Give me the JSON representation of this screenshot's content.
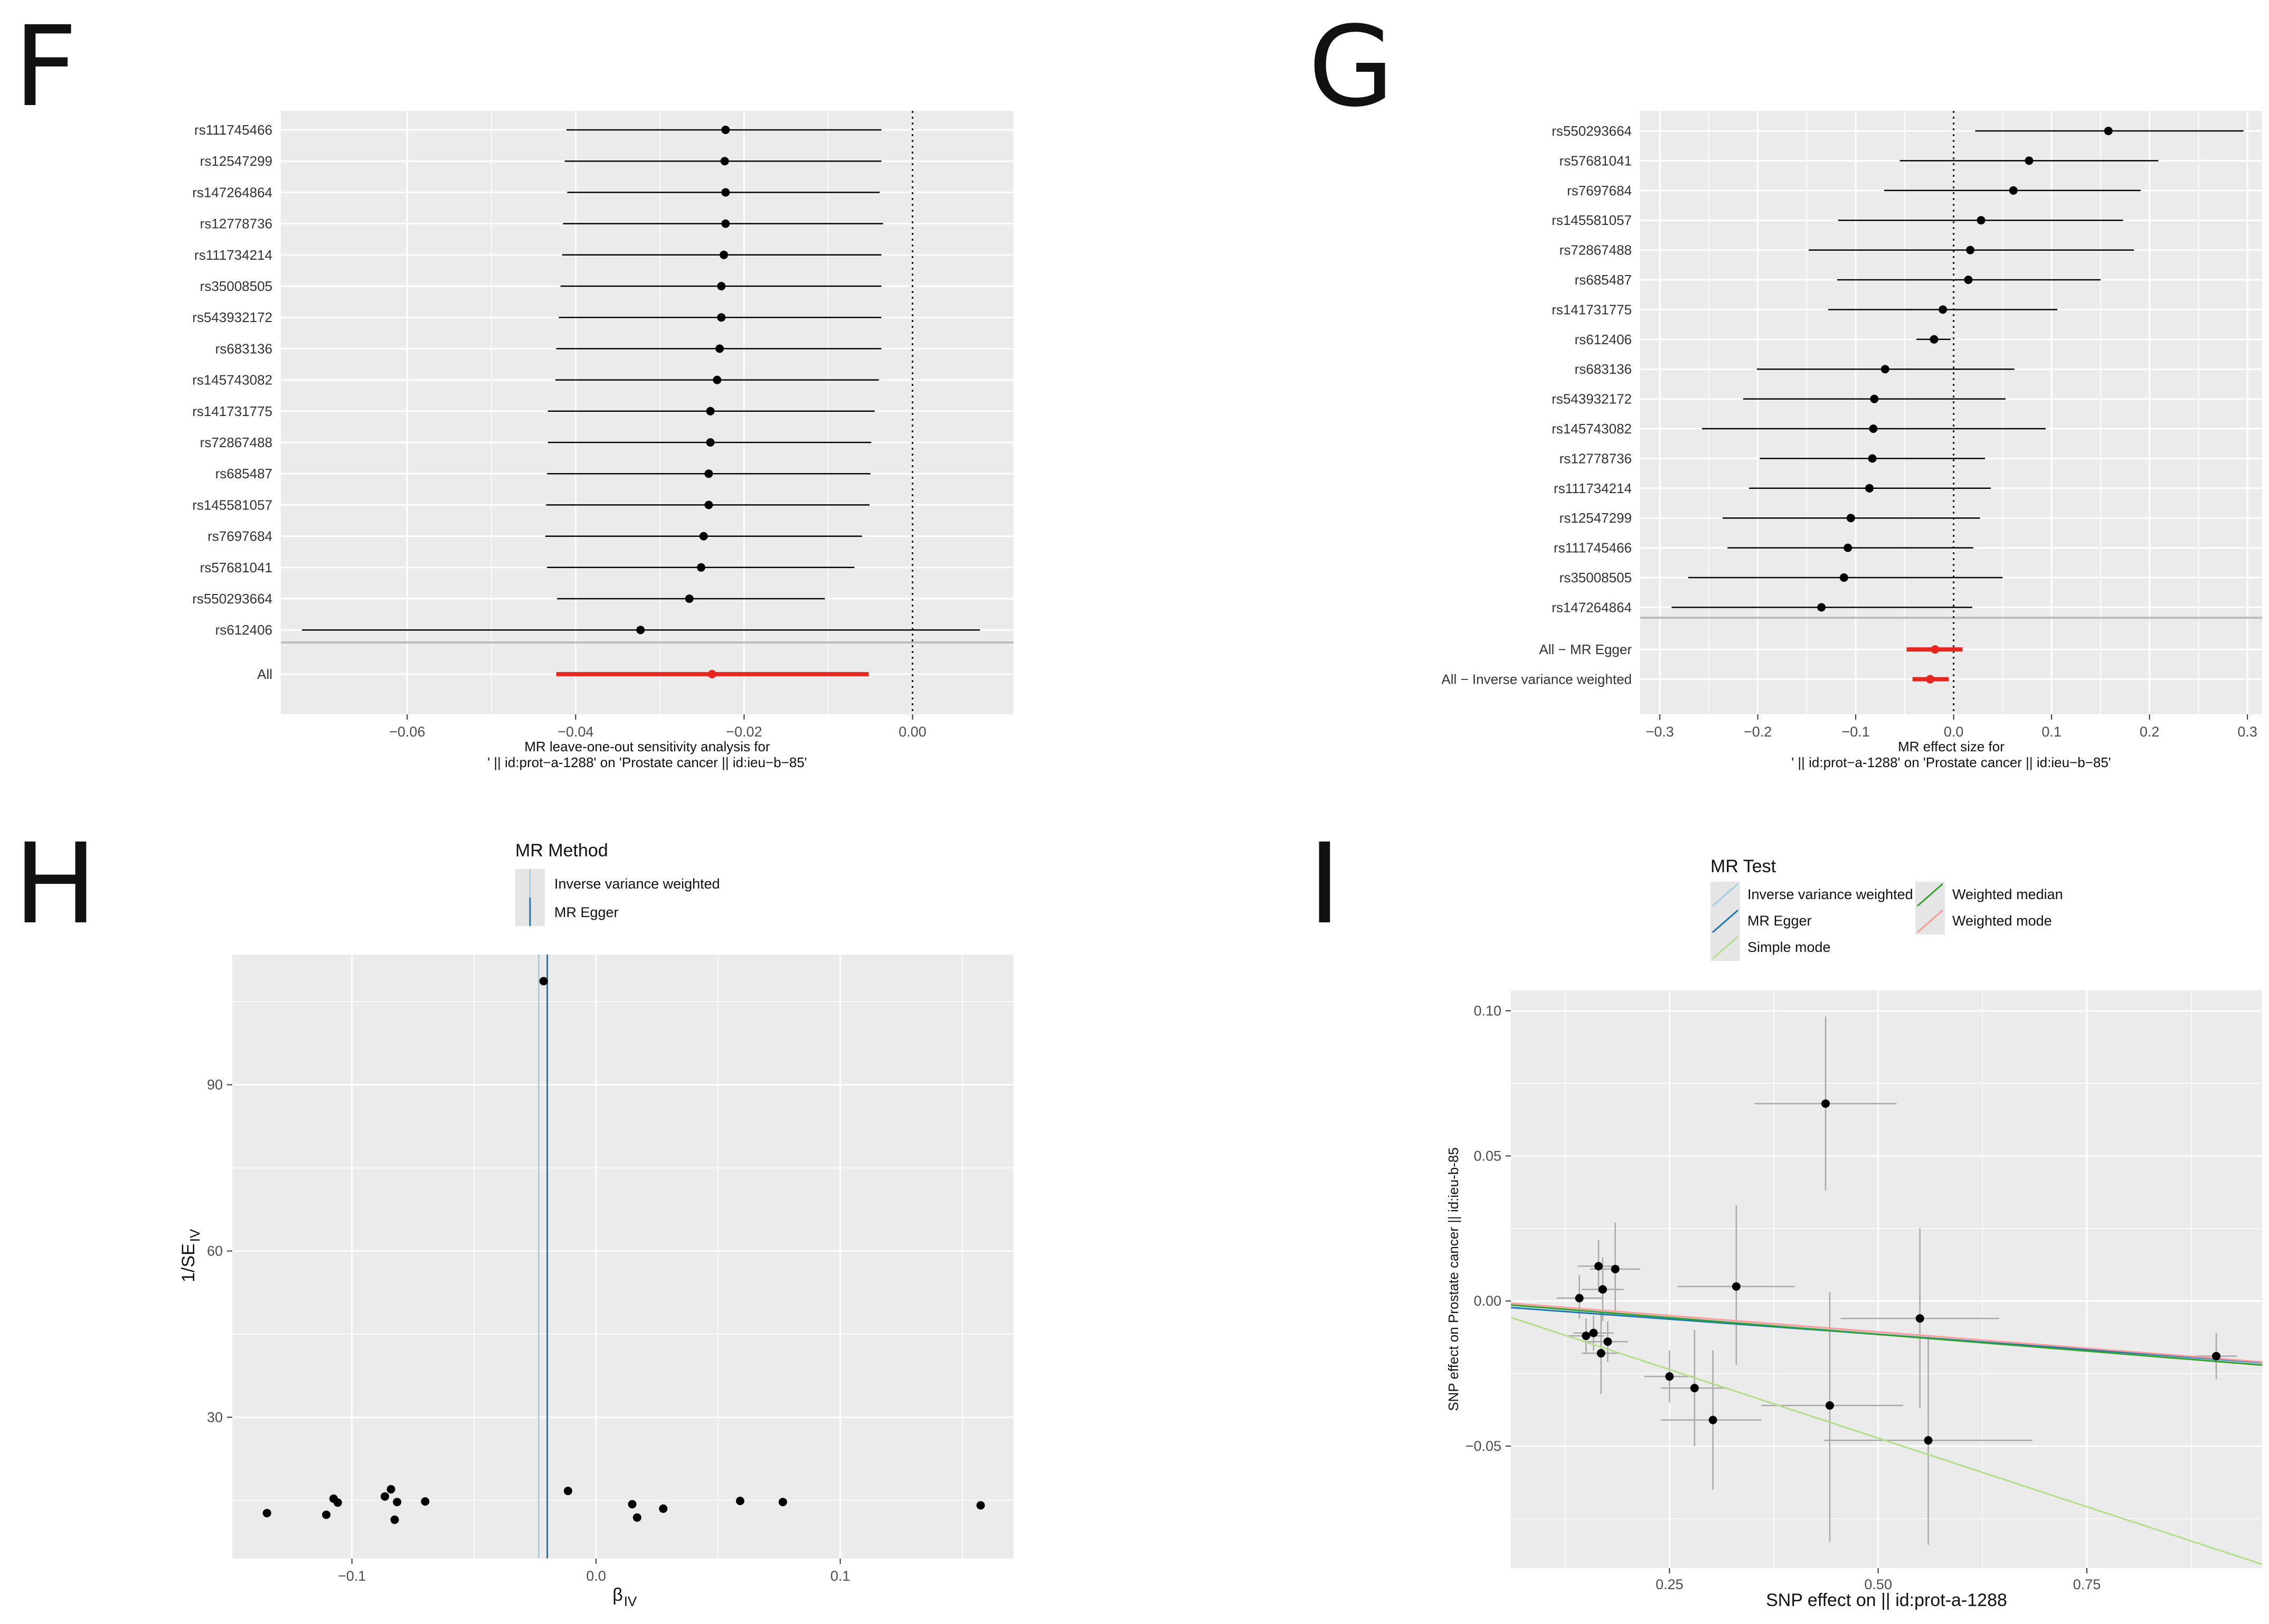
{
  "panels": {
    "F": "F",
    "G": "G",
    "H": "H",
    "I": "I"
  },
  "colors": {
    "panel_bg": "#ebebeb",
    "grid": "#ffffff",
    "point": "#000000",
    "summary": "#e6261f",
    "ivw": "#a6cee3",
    "egger": "#1f78b4",
    "simple_mode": "#b2df8a",
    "weighted_median": "#33a02c",
    "weighted_mode": "#fb9a99"
  },
  "chart_data": [
    {
      "id": "F",
      "type": "forest",
      "title": "MR leave-one-out sensitivity analysis for",
      "subtitle": "' || id:prot-a-1288' on 'Prostate cancer || id:ieu-b-85'",
      "xlim": [
        -0.075,
        0.012
      ],
      "xticks": [
        -0.06,
        -0.04,
        -0.02,
        0.0
      ],
      "xtick_labels": [
        "−0.06",
        "−0.04",
        "−0.02",
        "0.00"
      ],
      "rows": [
        {
          "snp": "rs111745466",
          "b": -0.0222,
          "lo": -0.0411,
          "hi": -0.0037
        },
        {
          "snp": "rs12547299",
          "b": -0.0223,
          "lo": -0.0413,
          "hi": -0.0037
        },
        {
          "snp": "rs147264864",
          "b": -0.0222,
          "lo": -0.041,
          "hi": -0.0039
        },
        {
          "snp": "rs12778736",
          "b": -0.0222,
          "lo": -0.0415,
          "hi": -0.0035
        },
        {
          "snp": "rs111734214",
          "b": -0.0224,
          "lo": -0.0416,
          "hi": -0.0037
        },
        {
          "snp": "rs35008505",
          "b": -0.0227,
          "lo": -0.0418,
          "hi": -0.0037
        },
        {
          "snp": "rs543932172",
          "b": -0.0227,
          "lo": -0.042,
          "hi": -0.0037
        },
        {
          "snp": "rs683136",
          "b": -0.0229,
          "lo": -0.0423,
          "hi": -0.0037
        },
        {
          "snp": "rs145743082",
          "b": -0.0232,
          "lo": -0.0424,
          "hi": -0.004
        },
        {
          "snp": "rs141731775",
          "b": -0.024,
          "lo": -0.0433,
          "hi": -0.0045
        },
        {
          "snp": "rs72867488",
          "b": -0.024,
          "lo": -0.0433,
          "hi": -0.0049
        },
        {
          "snp": "rs685487",
          "b": -0.0242,
          "lo": -0.0434,
          "hi": -0.005
        },
        {
          "snp": "rs145581057",
          "b": -0.0242,
          "lo": -0.0435,
          "hi": -0.0051
        },
        {
          "snp": "rs7697684",
          "b": -0.0248,
          "lo": -0.0436,
          "hi": -0.006
        },
        {
          "snp": "rs57681041",
          "b": -0.0251,
          "lo": -0.0434,
          "hi": -0.0069
        },
        {
          "snp": "rs550293664",
          "b": -0.0265,
          "lo": -0.0422,
          "hi": -0.0104
        },
        {
          "snp": "rs612406",
          "b": -0.0323,
          "lo": -0.0725,
          "hi": 0.008
        }
      ],
      "summary": [
        {
          "snp": "All",
          "b": -0.0238,
          "lo": -0.0423,
          "hi": -0.0052
        }
      ]
    },
    {
      "id": "G",
      "type": "forest",
      "title": "MR effect size for",
      "subtitle": "' || id:prot-a-1288' on 'Prostate cancer || id:ieu-b-85'",
      "xlim": [
        -0.32,
        0.315
      ],
      "xticks": [
        -0.3,
        -0.2,
        -0.1,
        0.0,
        0.1,
        0.2,
        0.3
      ],
      "xtick_labels": [
        "−0.3",
        "−0.2",
        "−0.1",
        "0.0",
        "0.1",
        "0.2",
        "0.3"
      ],
      "rows": [
        {
          "snp": "rs550293664",
          "b": 0.158,
          "lo": 0.022,
          "hi": 0.296
        },
        {
          "snp": "rs57681041",
          "b": 0.077,
          "lo": -0.055,
          "hi": 0.209
        },
        {
          "snp": "rs7697684",
          "b": 0.061,
          "lo": -0.071,
          "hi": 0.191
        },
        {
          "snp": "rs145581057",
          "b": 0.028,
          "lo": -0.118,
          "hi": 0.173
        },
        {
          "snp": "rs72867488",
          "b": 0.017,
          "lo": -0.148,
          "hi": 0.184
        },
        {
          "snp": "rs685487",
          "b": 0.015,
          "lo": -0.119,
          "hi": 0.15
        },
        {
          "snp": "rs141731775",
          "b": -0.011,
          "lo": -0.128,
          "hi": 0.106
        },
        {
          "snp": "rs612406",
          "b": -0.02,
          "lo": -0.038,
          "hi": -0.003
        },
        {
          "snp": "rs683136",
          "b": -0.07,
          "lo": -0.201,
          "hi": 0.062
        },
        {
          "snp": "rs543932172",
          "b": -0.081,
          "lo": -0.215,
          "hi": 0.053
        },
        {
          "snp": "rs145743082",
          "b": -0.082,
          "lo": -0.257,
          "hi": 0.094
        },
        {
          "snp": "rs12778736",
          "b": -0.083,
          "lo": -0.198,
          "hi": 0.032
        },
        {
          "snp": "rs111734214",
          "b": -0.086,
          "lo": -0.209,
          "hi": 0.038
        },
        {
          "snp": "rs12547299",
          "b": -0.105,
          "lo": -0.236,
          "hi": 0.027
        },
        {
          "snp": "rs111745466",
          "b": -0.108,
          "lo": -0.231,
          "hi": 0.02
        },
        {
          "snp": "rs35008505",
          "b": -0.112,
          "lo": -0.271,
          "hi": 0.05
        },
        {
          "snp": "rs147264864",
          "b": -0.135,
          "lo": -0.288,
          "hi": 0.019
        }
      ],
      "summary": [
        {
          "snp": "All - MR Egger",
          "b": -0.019,
          "lo": -0.048,
          "hi": 0.009
        },
        {
          "snp": "All - Inverse variance weighted",
          "b": -0.024,
          "lo": -0.042,
          "hi": -0.005
        }
      ]
    },
    {
      "id": "H",
      "type": "scatter",
      "xlabel_main": "β",
      "xlabel_sub": "IV",
      "ylabel_main": "1/SE",
      "ylabel_sub": "IV",
      "xlim": [
        -0.149,
        0.171
      ],
      "ylim": [
        4.5,
        113.5
      ],
      "xticks": [
        -0.1,
        0.0,
        0.1
      ],
      "xtick_labels": [
        "−0.1",
        "0.0",
        "0.1"
      ],
      "yticks": [
        30,
        60,
        90
      ],
      "ytick_labels": [
        "30",
        "60",
        "90"
      ],
      "legend_title": "MR Method",
      "legend": [
        "Inverse variance weighted",
        "MR Egger"
      ],
      "vlines": [
        {
          "method": "Inverse variance weighted",
          "x": -0.0235
        },
        {
          "method": "MR Egger",
          "x": -0.02
        }
      ],
      "points": [
        {
          "x": -0.0215,
          "y": 108.7
        },
        {
          "x": -0.1348,
          "y": 12.7
        },
        {
          "x": -0.1105,
          "y": 12.4
        },
        {
          "x": -0.1075,
          "y": 15.3
        },
        {
          "x": -0.1058,
          "y": 14.6
        },
        {
          "x": -0.0865,
          "y": 15.7
        },
        {
          "x": -0.084,
          "y": 17.0
        },
        {
          "x": -0.0815,
          "y": 14.7
        },
        {
          "x": -0.0825,
          "y": 11.5
        },
        {
          "x": -0.07,
          "y": 14.8
        },
        {
          "x": -0.0115,
          "y": 16.7
        },
        {
          "x": 0.0148,
          "y": 14.3
        },
        {
          "x": 0.0168,
          "y": 11.9
        },
        {
          "x": 0.0275,
          "y": 13.5
        },
        {
          "x": 0.059,
          "y": 14.9
        },
        {
          "x": 0.0765,
          "y": 14.7
        },
        {
          "x": 0.1575,
          "y": 14.1
        }
      ]
    },
    {
      "id": "I",
      "type": "scatter",
      "xlabel": "SNP effect on  || id:prot-a-1288",
      "ylabel": "SNP effect on Prostate cancer || id:ieu-b-85",
      "xlim": [
        0.06,
        0.96
      ],
      "ylim": [
        -0.092,
        0.107
      ],
      "xticks": [
        0.25,
        0.5,
        0.75
      ],
      "xtick_labels": [
        "0.25",
        "0.50",
        "0.75"
      ],
      "yticks": [
        -0.05,
        0.0,
        0.05,
        0.1
      ],
      "ytick_labels": [
        "−0.05",
        "0.00",
        "0.05",
        "0.10"
      ],
      "legend_title": "MR Test",
      "legend": [
        "Inverse variance weighted",
        "Weighted median",
        "MR Egger",
        "Weighted mode",
        "Simple mode"
      ],
      "lines": [
        {
          "method": "Inverse variance weighted",
          "slope": -0.0225,
          "intercept": 0.0
        },
        {
          "method": "MR Egger",
          "slope": -0.021,
          "intercept": -0.001
        },
        {
          "method": "Simple mode",
          "slope": -0.0945,
          "intercept": 0.0
        },
        {
          "method": "Weighted median",
          "slope": -0.023,
          "intercept": 0.0
        },
        {
          "method": "Weighted mode",
          "slope": -0.0225,
          "intercept": 0.0006
        }
      ],
      "points": [
        {
          "x": 0.437,
          "y": 0.068,
          "xlo": 0.352,
          "xhi": 0.522,
          "ylo": 0.038,
          "yhi": 0.098
        },
        {
          "x": 0.33,
          "y": 0.005,
          "xlo": 0.26,
          "xhi": 0.4,
          "ylo": -0.022,
          "yhi": 0.033
        },
        {
          "x": 0.185,
          "y": 0.011,
          "xlo": 0.155,
          "xhi": 0.215,
          "ylo": -0.005,
          "yhi": 0.027
        },
        {
          "x": 0.165,
          "y": 0.012,
          "xlo": 0.14,
          "xhi": 0.19,
          "ylo": 0.003,
          "yhi": 0.021
        },
        {
          "x": 0.17,
          "y": 0.004,
          "xlo": 0.145,
          "xhi": 0.195,
          "ylo": -0.007,
          "yhi": 0.015
        },
        {
          "x": 0.142,
          "y": 0.001,
          "xlo": 0.115,
          "xhi": 0.169,
          "ylo": -0.006,
          "yhi": 0.009
        },
        {
          "x": 0.159,
          "y": -0.011,
          "xlo": 0.135,
          "xhi": 0.183,
          "ylo": -0.017,
          "yhi": -0.005
        },
        {
          "x": 0.176,
          "y": -0.014,
          "xlo": 0.152,
          "xhi": 0.2,
          "ylo": -0.021,
          "yhi": -0.007
        },
        {
          "x": 0.168,
          "y": -0.018,
          "xlo": 0.145,
          "xhi": 0.191,
          "ylo": -0.032,
          "yhi": -0.004
        },
        {
          "x": 0.15,
          "y": -0.012,
          "xlo": 0.128,
          "xhi": 0.172,
          "ylo": -0.018,
          "yhi": -0.006
        },
        {
          "x": 0.25,
          "y": -0.026,
          "xlo": 0.22,
          "xhi": 0.28,
          "ylo": -0.035,
          "yhi": -0.017
        },
        {
          "x": 0.28,
          "y": -0.03,
          "xlo": 0.24,
          "xhi": 0.32,
          "ylo": -0.05,
          "yhi": -0.01
        },
        {
          "x": 0.302,
          "y": -0.041,
          "xlo": 0.24,
          "xhi": 0.36,
          "ylo": -0.065,
          "yhi": -0.017
        },
        {
          "x": 0.442,
          "y": -0.036,
          "xlo": 0.36,
          "xhi": 0.53,
          "ylo": -0.083,
          "yhi": 0.003
        },
        {
          "x": 0.55,
          "y": -0.006,
          "xlo": 0.455,
          "xhi": 0.645,
          "ylo": -0.037,
          "yhi": 0.025
        },
        {
          "x": 0.56,
          "y": -0.048,
          "xlo": 0.435,
          "xhi": 0.685,
          "ylo": -0.084,
          "yhi": -0.012
        },
        {
          "x": 0.905,
          "y": -0.019,
          "xlo": 0.88,
          "xhi": 0.93,
          "ylo": -0.027,
          "yhi": -0.011
        }
      ]
    }
  ]
}
